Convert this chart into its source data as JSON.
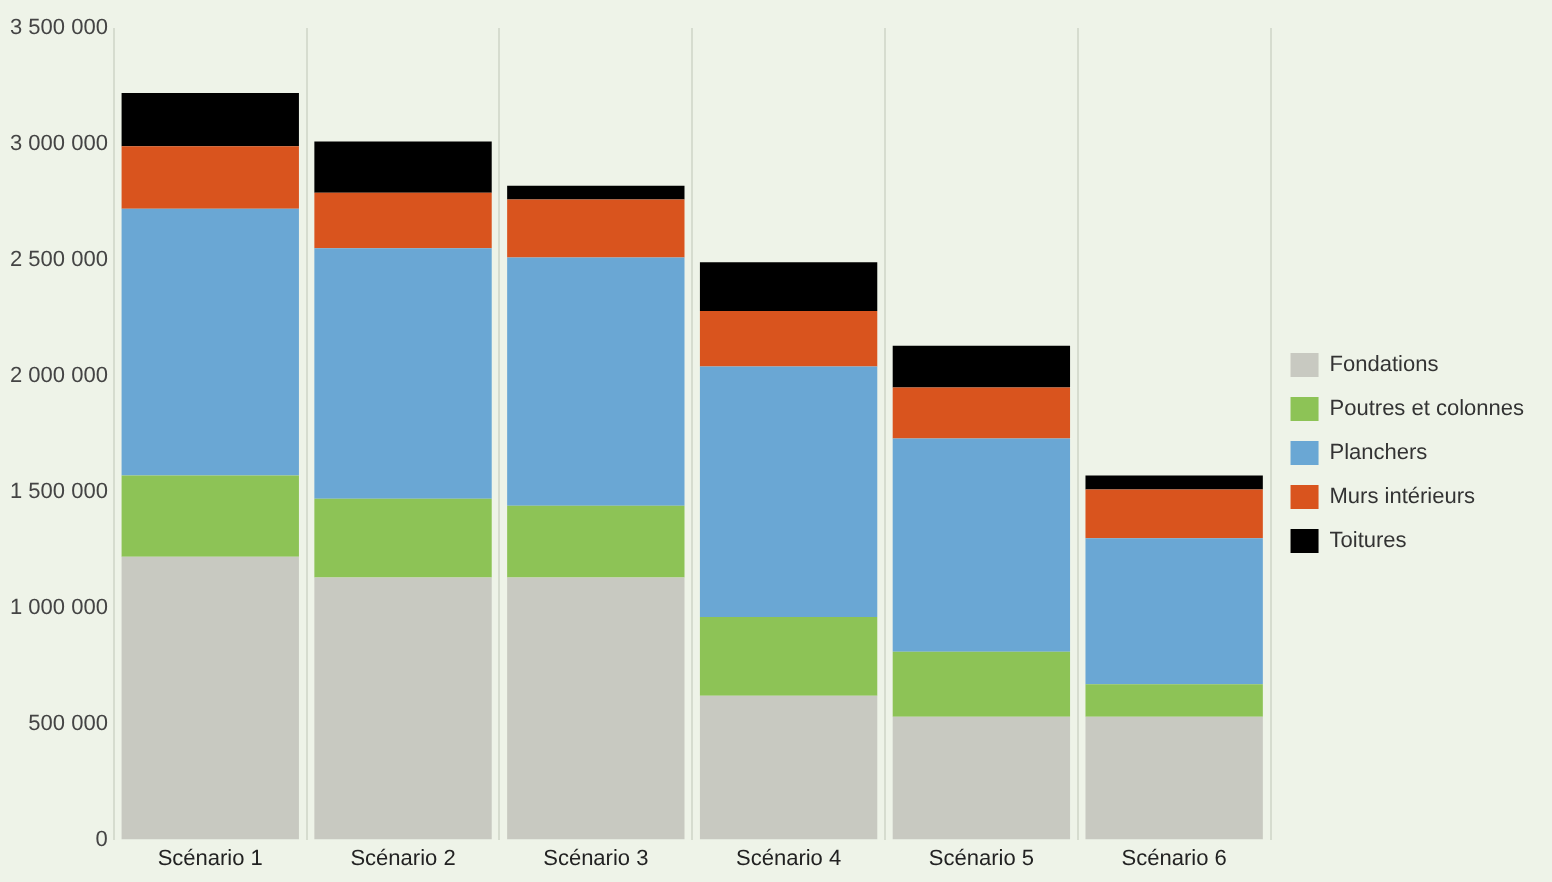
{
  "chart_data": {
    "type": "bar",
    "stacked": true,
    "categories": [
      "Scénario 1",
      "Scénario 2",
      "Scénario 3",
      "Scénario 4",
      "Scénario 5",
      "Scénario 6"
    ],
    "series": [
      {
        "name": "Fondations",
        "color": "#c8c9c1",
        "values": [
          1220000,
          1130000,
          1130000,
          620000,
          530000,
          530000
        ]
      },
      {
        "name": "Poutres et colonnes",
        "color": "#8dc356",
        "values": [
          350000,
          340000,
          310000,
          340000,
          280000,
          140000
        ]
      },
      {
        "name": "Planchers",
        "color": "#6aa7d4",
        "values": [
          1150000,
          1080000,
          1070000,
          1080000,
          920000,
          630000
        ]
      },
      {
        "name": "Murs intérieurs",
        "color": "#d9541e",
        "values": [
          270000,
          240000,
          250000,
          240000,
          220000,
          210000
        ]
      },
      {
        "name": "Toitures",
        "color": "#000000",
        "values": [
          230000,
          220000,
          60000,
          210000,
          180000,
          60000
        ]
      }
    ],
    "ylim": [
      0,
      3500000
    ],
    "yticks": [
      0,
      {
        "value": 500000,
        "label": "500 000"
      },
      {
        "value": 1000000,
        "label": "1 000 000"
      },
      {
        "value": 1500000,
        "label": "1 500 000"
      },
      {
        "value": 2000000,
        "label": "2 000 000"
      },
      {
        "value": 2500000,
        "label": "2 500 000"
      },
      {
        "value": 3000000,
        "label": "3 000 000"
      },
      {
        "value": 3500000,
        "label": "3 500 000"
      }
    ],
    "grid": "x",
    "legend": "right"
  }
}
